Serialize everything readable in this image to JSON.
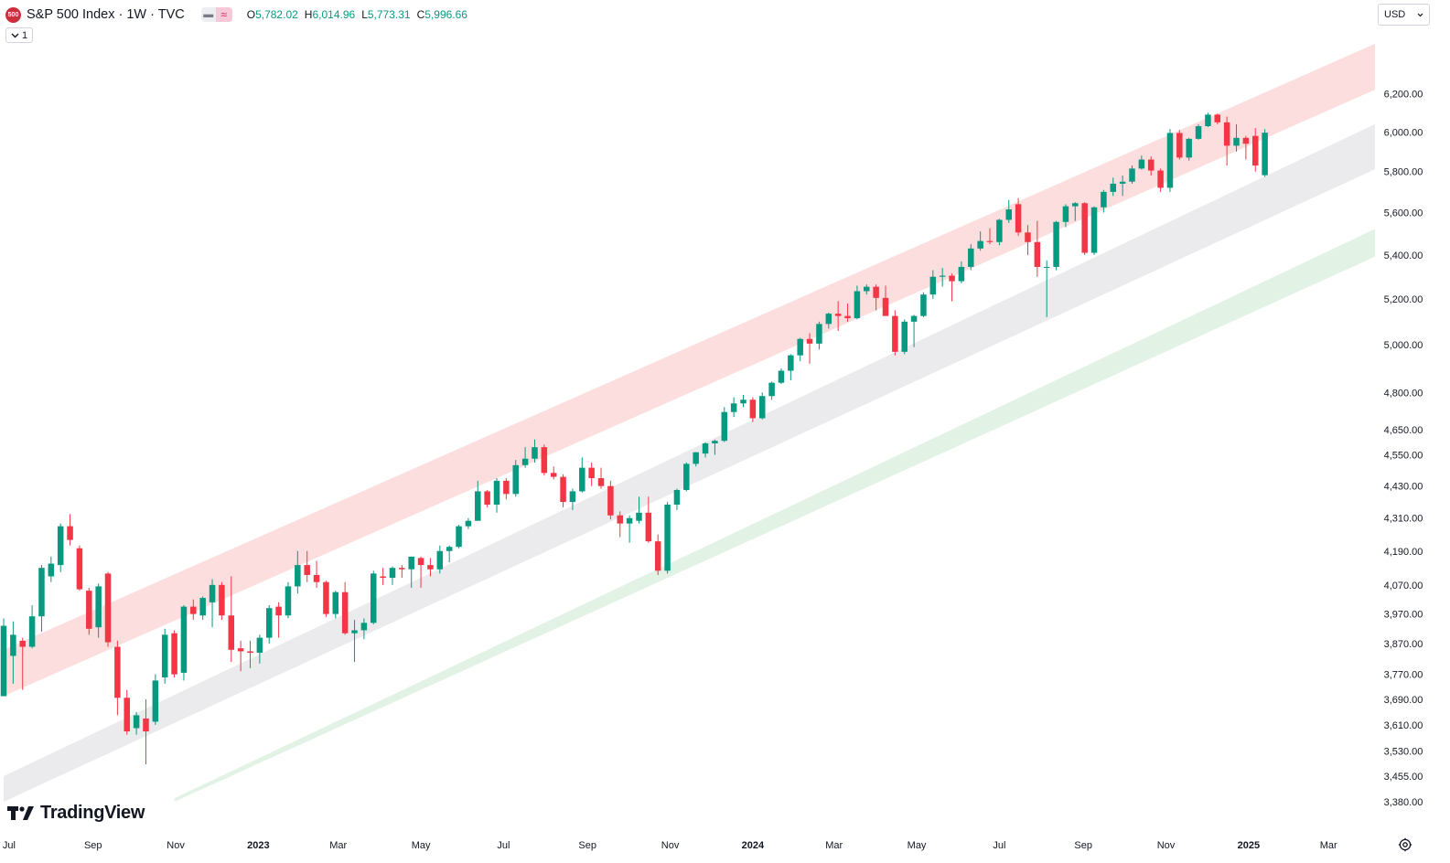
{
  "header": {
    "symbol_badge": "500",
    "title": "S&P 500 Index · 1W · TVC",
    "ohlc": {
      "open_label": "O",
      "open": "5,782.02",
      "high_label": "H",
      "high": "6,014.96",
      "low_label": "L",
      "low": "5,773.31",
      "close_label": "C",
      "close": "5,996.66"
    },
    "interval_count": "1"
  },
  "currency": "USD",
  "logo_text": "TradingView",
  "colors": {
    "up": "#089981",
    "down": "#f23645",
    "band_upper": "#fcdede",
    "band_middle": "#ebebed",
    "band_lower": "#e2f2e5"
  },
  "chart_data": {
    "type": "candlestick",
    "y_scale": "log",
    "ylim": [
      3380,
      6380
    ],
    "xlim": [
      "2022-06-27",
      "2025-04-07"
    ],
    "grid": false,
    "y_ticks": [
      {
        "value": 3380,
        "label": "3,380.00"
      },
      {
        "value": 3455,
        "label": "3,455.00"
      },
      {
        "value": 3530,
        "label": "3,530.00"
      },
      {
        "value": 3610,
        "label": "3,610.00"
      },
      {
        "value": 3690,
        "label": "3,690.00"
      },
      {
        "value": 3770,
        "label": "3,770.00"
      },
      {
        "value": 3870,
        "label": "3,870.00"
      },
      {
        "value": 3970,
        "label": "3,970.00"
      },
      {
        "value": 4070,
        "label": "4,070.00"
      },
      {
        "value": 4190,
        "label": "4,190.00"
      },
      {
        "value": 4310,
        "label": "4,310.00"
      },
      {
        "value": 4430,
        "label": "4,430.00"
      },
      {
        "value": 4550,
        "label": "4,550.00"
      },
      {
        "value": 4650,
        "label": "4,650.00"
      },
      {
        "value": 4800,
        "label": "4,800.00"
      },
      {
        "value": 5000,
        "label": "5,000.00"
      },
      {
        "value": 5200,
        "label": "5,200.00"
      },
      {
        "value": 5400,
        "label": "5,400.00"
      },
      {
        "value": 5600,
        "label": "5,600.00"
      },
      {
        "value": 5800,
        "label": "5,800.00"
      },
      {
        "value": 6000,
        "label": "6,000.00"
      },
      {
        "value": 6200,
        "label": "6,200.00"
      }
    ],
    "x_ticks": [
      {
        "date": "2022-07-01",
        "label": "Jul",
        "bold": false
      },
      {
        "date": "2022-09-01",
        "label": "Sep",
        "bold": false
      },
      {
        "date": "2022-11-01",
        "label": "Nov",
        "bold": false
      },
      {
        "date": "2023-01-01",
        "label": "2023",
        "bold": true
      },
      {
        "date": "2023-03-01",
        "label": "Mar",
        "bold": false
      },
      {
        "date": "2023-05-01",
        "label": "May",
        "bold": false
      },
      {
        "date": "2023-07-01",
        "label": "Jul",
        "bold": false
      },
      {
        "date": "2023-09-01",
        "label": "Sep",
        "bold": false
      },
      {
        "date": "2023-11-01",
        "label": "Nov",
        "bold": false
      },
      {
        "date": "2024-01-01",
        "label": "2024",
        "bold": true
      },
      {
        "date": "2024-03-01",
        "label": "Mar",
        "bold": false
      },
      {
        "date": "2024-05-01",
        "label": "May",
        "bold": false
      },
      {
        "date": "2024-07-01",
        "label": "Jul",
        "bold": false
      },
      {
        "date": "2024-09-01",
        "label": "Sep",
        "bold": false
      },
      {
        "date": "2024-11-01",
        "label": "Nov",
        "bold": false
      },
      {
        "date": "2025-01-01",
        "label": "2025",
        "bold": true
      },
      {
        "date": "2025-03-01",
        "label": "Mar",
        "bold": false
      }
    ],
    "bands": [
      {
        "name": "upper",
        "start_date": "2022-06-27",
        "start": [
          3700,
          3850
        ],
        "end_date": "2025-04-07",
        "end": [
          6230,
          6480
        ]
      },
      {
        "name": "middle",
        "start_date": "2022-06-27",
        "start": [
          3380,
          3455
        ],
        "end_date": "2025-04-07",
        "end": [
          5820,
          6050
        ]
      },
      {
        "name": "lower",
        "start_date": "2022-10-31",
        "start": [
          3380,
          3390
        ],
        "end_date": "2025-04-07",
        "end": [
          5400,
          5530
        ]
      }
    ],
    "candles": [
      [
        "2022-06-27",
        3700,
        3955,
        3700,
        3930
      ],
      [
        "2022-07-04",
        3830,
        3945,
        3740,
        3900
      ],
      [
        "2022-07-11",
        3880,
        3890,
        3720,
        3860
      ],
      [
        "2022-07-18",
        3860,
        4000,
        3855,
        3962
      ],
      [
        "2022-07-25",
        3962,
        4140,
        3910,
        4130
      ],
      [
        "2022-08-01",
        4100,
        4170,
        4080,
        4145
      ],
      [
        "2022-08-08",
        4140,
        4290,
        4115,
        4280
      ],
      [
        "2022-08-15",
        4280,
        4325,
        4210,
        4230
      ],
      [
        "2022-08-22",
        4200,
        4210,
        4050,
        4055
      ],
      [
        "2022-08-29",
        4050,
        4060,
        3900,
        3920
      ],
      [
        "2022-09-05",
        3925,
        4075,
        3890,
        4065
      ],
      [
        "2022-09-12",
        4110,
        4115,
        3860,
        3875
      ],
      [
        "2022-09-19",
        3860,
        3880,
        3640,
        3695
      ],
      [
        "2022-09-26",
        3695,
        3720,
        3580,
        3590
      ],
      [
        "2022-10-03",
        3600,
        3650,
        3580,
        3640
      ],
      [
        "2022-10-10",
        3630,
        3690,
        3490,
        3590
      ],
      [
        "2022-10-17",
        3620,
        3770,
        3610,
        3750
      ],
      [
        "2022-10-24",
        3760,
        3920,
        3740,
        3900
      ],
      [
        "2022-10-31",
        3905,
        3915,
        3760,
        3770
      ],
      [
        "2022-11-07",
        3775,
        4000,
        3750,
        3995
      ],
      [
        "2022-11-14",
        3995,
        4020,
        3950,
        3970
      ],
      [
        "2022-11-21",
        3965,
        4030,
        3950,
        4025
      ],
      [
        "2022-11-28",
        4010,
        4090,
        3925,
        4070
      ],
      [
        "2022-12-05",
        4070,
        4080,
        3950,
        3965
      ],
      [
        "2022-12-12",
        3965,
        4100,
        3810,
        3850
      ],
      [
        "2022-12-19",
        3855,
        3880,
        3780,
        3845
      ],
      [
        "2022-12-26",
        3845,
        3880,
        3790,
        3840
      ],
      [
        "2023-01-02",
        3840,
        3900,
        3805,
        3890
      ],
      [
        "2023-01-09",
        3890,
        4000,
        3870,
        3990
      ],
      [
        "2023-01-16",
        3995,
        4010,
        3890,
        3965
      ],
      [
        "2023-01-23",
        3965,
        4080,
        3955,
        4065
      ],
      [
        "2023-01-30",
        4065,
        4190,
        4040,
        4140
      ],
      [
        "2023-02-06",
        4140,
        4190,
        4080,
        4105
      ],
      [
        "2023-02-13",
        4105,
        4155,
        4060,
        4080
      ],
      [
        "2023-02-20",
        4080,
        4085,
        3960,
        3970
      ],
      [
        "2023-02-27",
        3970,
        4050,
        3955,
        4045
      ],
      [
        "2023-03-06",
        4045,
        4080,
        3900,
        3905
      ],
      [
        "2023-03-13",
        3905,
        3950,
        3810,
        3915
      ],
      [
        "2023-03-20",
        3915,
        3955,
        3885,
        3940
      ],
      [
        "2023-03-27",
        3940,
        4120,
        3935,
        4110
      ],
      [
        "2023-04-03",
        4100,
        4130,
        4070,
        4095
      ],
      [
        "2023-04-10",
        4095,
        4135,
        4070,
        4130
      ],
      [
        "2023-04-17",
        4130,
        4140,
        4095,
        4125
      ],
      [
        "2023-04-24",
        4125,
        4170,
        4060,
        4170
      ],
      [
        "2023-05-01",
        4165,
        4170,
        4060,
        4140
      ],
      [
        "2023-05-08",
        4140,
        4165,
        4100,
        4125
      ],
      [
        "2023-05-15",
        4125,
        4210,
        4110,
        4190
      ],
      [
        "2023-05-22",
        4190,
        4210,
        4150,
        4205
      ],
      [
        "2023-05-29",
        4205,
        4285,
        4200,
        4280
      ],
      [
        "2023-06-05",
        4280,
        4310,
        4270,
        4300
      ],
      [
        "2023-06-12",
        4300,
        4450,
        4300,
        4410
      ],
      [
        "2023-06-19",
        4410,
        4415,
        4350,
        4360
      ],
      [
        "2023-06-26",
        4360,
        4460,
        4330,
        4450
      ],
      [
        "2023-07-03",
        4450,
        4460,
        4380,
        4400
      ],
      [
        "2023-07-10",
        4400,
        4530,
        4390,
        4510
      ],
      [
        "2023-07-17",
        4510,
        4580,
        4500,
        4535
      ],
      [
        "2023-07-24",
        4535,
        4610,
        4520,
        4580
      ],
      [
        "2023-07-31",
        4580,
        4590,
        4470,
        4480
      ],
      [
        "2023-08-07",
        4480,
        4505,
        4455,
        4465
      ],
      [
        "2023-08-14",
        4465,
        4475,
        4350,
        4370
      ],
      [
        "2023-08-21",
        4370,
        4420,
        4340,
        4410
      ],
      [
        "2023-08-28",
        4410,
        4540,
        4405,
        4500
      ],
      [
        "2023-09-04",
        4500,
        4520,
        4430,
        4460
      ],
      [
        "2023-09-11",
        4460,
        4500,
        4420,
        4430
      ],
      [
        "2023-09-18",
        4430,
        4450,
        4305,
        4320
      ],
      [
        "2023-09-25",
        4320,
        4335,
        4240,
        4290
      ],
      [
        "2023-10-02",
        4290,
        4320,
        4220,
        4310
      ],
      [
        "2023-10-09",
        4300,
        4390,
        4290,
        4330
      ],
      [
        "2023-10-16",
        4330,
        4390,
        4220,
        4225
      ],
      [
        "2023-10-23",
        4225,
        4250,
        4105,
        4120
      ],
      [
        "2023-10-30",
        4120,
        4370,
        4110,
        4360
      ],
      [
        "2023-11-06",
        4360,
        4420,
        4340,
        4415
      ],
      [
        "2023-11-13",
        4415,
        4520,
        4410,
        4515
      ],
      [
        "2023-11-20",
        4515,
        4560,
        4505,
        4560
      ],
      [
        "2023-11-27",
        4555,
        4600,
        4540,
        4595
      ],
      [
        "2023-12-04",
        4595,
        4610,
        4550,
        4605
      ],
      [
        "2023-12-11",
        4605,
        4740,
        4600,
        4720
      ],
      [
        "2023-12-18",
        4720,
        4780,
        4700,
        4755
      ],
      [
        "2023-12-25",
        4755,
        4790,
        4740,
        4770
      ],
      [
        "2024-01-01",
        4770,
        4780,
        4680,
        4695
      ],
      [
        "2024-01-08",
        4695,
        4800,
        4690,
        4785
      ],
      [
        "2024-01-15",
        4785,
        4845,
        4770,
        4840
      ],
      [
        "2024-01-22",
        4840,
        4900,
        4835,
        4890
      ],
      [
        "2024-01-29",
        4890,
        4960,
        4850,
        4955
      ],
      [
        "2024-02-05",
        4955,
        5030,
        4930,
        5025
      ],
      [
        "2024-02-12",
        5025,
        5050,
        4920,
        5005
      ],
      [
        "2024-02-19",
        5005,
        5100,
        4980,
        5090
      ],
      [
        "2024-02-26",
        5090,
        5140,
        5070,
        5135
      ],
      [
        "2024-03-04",
        5135,
        5190,
        5060,
        5125
      ],
      [
        "2024-03-11",
        5125,
        5180,
        5100,
        5115
      ],
      [
        "2024-03-18",
        5115,
        5260,
        5110,
        5235
      ],
      [
        "2024-03-25",
        5235,
        5265,
        5220,
        5255
      ],
      [
        "2024-04-01",
        5255,
        5265,
        5150,
        5205
      ],
      [
        "2024-04-08",
        5205,
        5260,
        5140,
        5125
      ],
      [
        "2024-04-15",
        5125,
        5150,
        4955,
        4970
      ],
      [
        "2024-04-22",
        4970,
        5110,
        4960,
        5100
      ],
      [
        "2024-04-29",
        5100,
        5130,
        4990,
        5125
      ],
      [
        "2024-05-06",
        5125,
        5230,
        5120,
        5220
      ],
      [
        "2024-05-13",
        5220,
        5330,
        5200,
        5300
      ],
      [
        "2024-05-20",
        5300,
        5340,
        5255,
        5305
      ],
      [
        "2024-05-27",
        5305,
        5315,
        5190,
        5280
      ],
      [
        "2024-06-03",
        5280,
        5370,
        5270,
        5345
      ],
      [
        "2024-06-10",
        5345,
        5450,
        5330,
        5430
      ],
      [
        "2024-06-17",
        5430,
        5510,
        5420,
        5465
      ],
      [
        "2024-06-24",
        5465,
        5525,
        5450,
        5460
      ],
      [
        "2024-07-01",
        5460,
        5570,
        5445,
        5565
      ],
      [
        "2024-07-08",
        5565,
        5660,
        5550,
        5615
      ],
      [
        "2024-07-15",
        5640,
        5670,
        5490,
        5505
      ],
      [
        "2024-07-22",
        5505,
        5540,
        5400,
        5460
      ],
      [
        "2024-07-29",
        5460,
        5560,
        5300,
        5345
      ],
      [
        "2024-08-05",
        5345,
        5375,
        5120,
        5345
      ],
      [
        "2024-08-12",
        5345,
        5560,
        5330,
        5555
      ],
      [
        "2024-08-19",
        5555,
        5640,
        5530,
        5630
      ],
      [
        "2024-08-26",
        5630,
        5650,
        5560,
        5645
      ],
      [
        "2024-09-02",
        5645,
        5650,
        5400,
        5410
      ],
      [
        "2024-09-09",
        5410,
        5630,
        5400,
        5625
      ],
      [
        "2024-09-16",
        5625,
        5710,
        5600,
        5700
      ],
      [
        "2024-09-23",
        5700,
        5770,
        5680,
        5740
      ],
      [
        "2024-09-30",
        5740,
        5780,
        5680,
        5750
      ],
      [
        "2024-10-07",
        5750,
        5830,
        5740,
        5815
      ],
      [
        "2024-10-14",
        5815,
        5880,
        5810,
        5860
      ],
      [
        "2024-10-21",
        5860,
        5875,
        5780,
        5805
      ],
      [
        "2024-10-28",
        5805,
        5815,
        5700,
        5720
      ],
      [
        "2024-11-04",
        5720,
        6015,
        5700,
        5995
      ],
      [
        "2024-11-11",
        5995,
        6010,
        5860,
        5870
      ],
      [
        "2024-11-18",
        5870,
        5970,
        5855,
        5965
      ],
      [
        "2024-11-25",
        5965,
        6040,
        5960,
        6030
      ],
      [
        "2024-12-02",
        6030,
        6100,
        6025,
        6090
      ],
      [
        "2024-12-09",
        6090,
        6095,
        6040,
        6050
      ],
      [
        "2024-12-16",
        6050,
        6080,
        5830,
        5930
      ],
      [
        "2024-12-23",
        5930,
        6040,
        5900,
        5970
      ],
      [
        "2024-12-30",
        5970,
        5980,
        5860,
        5940
      ],
      [
        "2025-01-06",
        5980,
        6020,
        5800,
        5830
      ],
      [
        "2025-01-13",
        5782.02,
        6014.96,
        5773.31,
        5996.66
      ]
    ]
  }
}
